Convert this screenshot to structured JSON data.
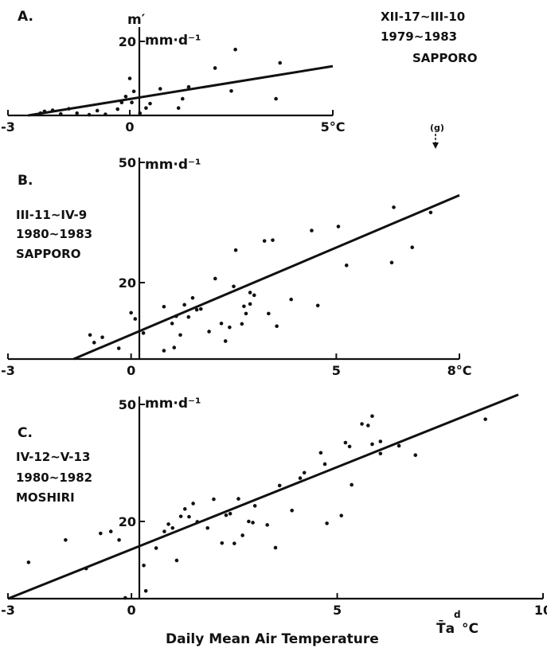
{
  "chart_data": [
    {
      "type": "scatter",
      "panel_label": "A.",
      "ylabel": "m′",
      "y_unit": "mm·d⁻¹",
      "annotations": [
        "XII-17~III-10",
        "1979~1983",
        "SAPPORO"
      ],
      "xlim": [
        -3,
        5
      ],
      "ylim": [
        0,
        22
      ],
      "x_ticks": [
        -3,
        0,
        5
      ],
      "x_tick_labels": [
        "-3",
        "0",
        "5°C"
      ],
      "y_ticks": [
        20
      ],
      "y_tick_labels": [
        "20"
      ],
      "points": [
        [
          -2.2,
          0.6
        ],
        [
          -2.1,
          1.1
        ],
        [
          -1.9,
          1.4
        ],
        [
          -1.7,
          0.4
        ],
        [
          -1.5,
          1.8
        ],
        [
          -1.3,
          0.6
        ],
        [
          -1.0,
          0.2
        ],
        [
          -0.8,
          1.3
        ],
        [
          -0.6,
          0.3
        ],
        [
          -0.3,
          1.7
        ],
        [
          -0.2,
          3.5
        ],
        [
          -0.1,
          5.1
        ],
        [
          0.0,
          10.0
        ],
        [
          0.05,
          3.5
        ],
        [
          0.1,
          6.5
        ],
        [
          0.25,
          0.6
        ],
        [
          0.4,
          2.0
        ],
        [
          0.5,
          3.2
        ],
        [
          0.75,
          7.2
        ],
        [
          1.2,
          2.0
        ],
        [
          1.3,
          4.5
        ],
        [
          1.45,
          7.7
        ],
        [
          2.1,
          12.8
        ],
        [
          2.5,
          6.6
        ],
        [
          2.6,
          17.8
        ],
        [
          3.6,
          4.5
        ],
        [
          3.7,
          14.2
        ]
      ],
      "fit_line": [
        [
          -2.5,
          0.0
        ],
        [
          5.0,
          13.3
        ]
      ]
    },
    {
      "type": "scatter",
      "panel_label": "B.",
      "y_unit": "mm·d⁻¹",
      "annotations": [
        "III-11~IV-9",
        "1980~1983",
        "SAPPORO"
      ],
      "marker_label": "(g)",
      "xlim": [
        -3,
        8
      ],
      "ylim": [
        0,
        50
      ],
      "x_ticks": [
        -3,
        0,
        5,
        8
      ],
      "x_tick_labels": [
        "-3",
        "0",
        "5",
        "8°C"
      ],
      "y_ticks": [
        20,
        50
      ],
      "y_tick_labels": [
        "20",
        "50"
      ],
      "points": [
        [
          -1.0,
          6.3
        ],
        [
          -0.9,
          4.3
        ],
        [
          -0.7,
          5.7
        ],
        [
          -0.3,
          2.8
        ],
        [
          0.0,
          12.1
        ],
        [
          0.1,
          10.5
        ],
        [
          0.3,
          6.8
        ],
        [
          0.8,
          2.2
        ],
        [
          0.8,
          13.7
        ],
        [
          1.0,
          9.3
        ],
        [
          1.05,
          3.0
        ],
        [
          1.1,
          11.2
        ],
        [
          1.2,
          6.3
        ],
        [
          1.3,
          14.2
        ],
        [
          1.4,
          11.0
        ],
        [
          1.5,
          16.0
        ],
        [
          1.6,
          12.9
        ],
        [
          1.7,
          13.1
        ],
        [
          1.9,
          7.2
        ],
        [
          2.05,
          21.0
        ],
        [
          2.2,
          9.3
        ],
        [
          2.3,
          4.7
        ],
        [
          2.4,
          8.3
        ],
        [
          2.5,
          19.0
        ],
        [
          2.55,
          28.1
        ],
        [
          2.7,
          9.2
        ],
        [
          2.75,
          13.8
        ],
        [
          2.8,
          11.9
        ],
        [
          2.9,
          14.4
        ],
        [
          2.9,
          17.4
        ],
        [
          3.0,
          16.7
        ],
        [
          3.25,
          30.4
        ],
        [
          3.35,
          11.9
        ],
        [
          3.45,
          30.6
        ],
        [
          3.55,
          8.6
        ],
        [
          3.9,
          15.6
        ],
        [
          4.4,
          33.0
        ],
        [
          4.55,
          14.0
        ],
        [
          5.05,
          34.0
        ],
        [
          5.25,
          24.3
        ],
        [
          6.35,
          25.0
        ],
        [
          6.4,
          38.8
        ],
        [
          6.85,
          28.8
        ],
        [
          7.3,
          37.5
        ]
      ],
      "fit_line": [
        [
          -1.4,
          0.0
        ],
        [
          8.0,
          41.8
        ]
      ]
    },
    {
      "type": "scatter",
      "panel_label": "C.",
      "y_unit": "mm·d⁻¹",
      "annotations": [
        "IV-12~V-13",
        "1980~1982",
        "MOSHIRI"
      ],
      "xlabel": "Daily Mean Air Temperature",
      "x_symbol": "T̄a",
      "x_symbol_sup": "d",
      "x_unit": "°C",
      "xlim": [
        -3,
        10
      ],
      "ylim": [
        0,
        50
      ],
      "x_ticks": [
        -3,
        0,
        5,
        10
      ],
      "x_tick_labels": [
        "-3",
        "0",
        "5",
        "10"
      ],
      "y_ticks": [
        20,
        50
      ],
      "y_tick_labels": [
        "20",
        "50"
      ],
      "points": [
        [
          -2.5,
          9.4
        ],
        [
          -1.6,
          15.2
        ],
        [
          -1.1,
          7.8
        ],
        [
          -0.75,
          16.9
        ],
        [
          -0.5,
          17.4
        ],
        [
          -0.3,
          15.2
        ],
        [
          -0.15,
          0.2
        ],
        [
          0.3,
          8.6
        ],
        [
          0.35,
          2.0
        ],
        [
          0.6,
          13.1
        ],
        [
          0.8,
          17.4
        ],
        [
          0.9,
          19.3
        ],
        [
          1.0,
          18.3
        ],
        [
          1.1,
          9.9
        ],
        [
          1.2,
          21.3
        ],
        [
          1.3,
          23.2
        ],
        [
          1.4,
          21.2
        ],
        [
          1.5,
          24.6
        ],
        [
          1.6,
          19.9
        ],
        [
          1.85,
          18.3
        ],
        [
          2.0,
          25.7
        ],
        [
          2.2,
          14.4
        ],
        [
          2.3,
          21.6
        ],
        [
          2.4,
          22.0
        ],
        [
          2.5,
          14.3
        ],
        [
          2.6,
          25.8
        ],
        [
          2.7,
          16.4
        ],
        [
          2.85,
          20.0
        ],
        [
          2.95,
          19.7
        ],
        [
          3.0,
          24.0
        ],
        [
          3.3,
          19.1
        ],
        [
          3.5,
          13.2
        ],
        [
          3.6,
          29.2
        ],
        [
          3.9,
          22.8
        ],
        [
          4.1,
          31.1
        ],
        [
          4.2,
          32.5
        ],
        [
          4.6,
          37.6
        ],
        [
          4.7,
          34.7
        ],
        [
          4.75,
          19.5
        ],
        [
          5.1,
          21.5
        ],
        [
          5.2,
          40.2
        ],
        [
          5.3,
          39.2
        ],
        [
          5.35,
          29.4
        ],
        [
          5.6,
          45.0
        ],
        [
          5.75,
          44.6
        ],
        [
          5.85,
          39.8
        ],
        [
          5.85,
          47.0
        ],
        [
          6.05,
          37.4
        ],
        [
          6.05,
          40.5
        ],
        [
          6.5,
          39.4
        ],
        [
          6.9,
          37.0
        ],
        [
          8.6,
          46.2
        ]
      ],
      "fit_line": [
        [
          -3.0,
          0.0
        ],
        [
          9.4,
          52.5
        ]
      ]
    }
  ]
}
